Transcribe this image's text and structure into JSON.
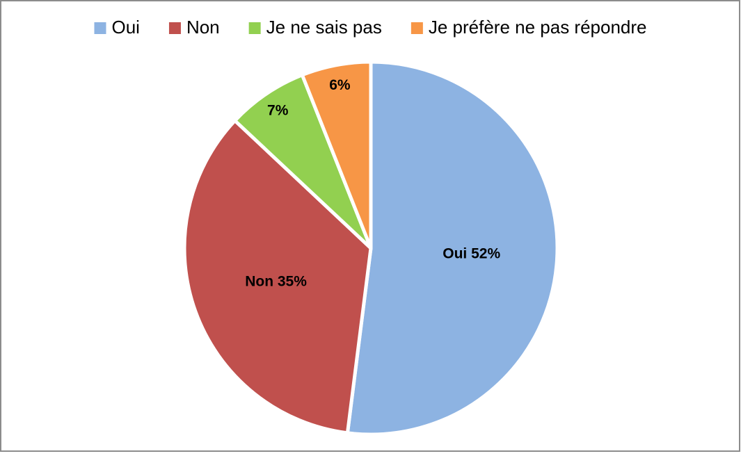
{
  "chart_data": {
    "type": "pie",
    "categories": [
      "Oui",
      "Non",
      "Je ne sais pas",
      "Je préfère ne pas répondre"
    ],
    "values": [
      52,
      35,
      7,
      6
    ],
    "value_labels": [
      "Oui 52%",
      "Non 35%",
      "7%",
      "6%"
    ],
    "colors": [
      "#8db3e2",
      "#c0504d",
      "#92d050",
      "#f79646"
    ],
    "legend": "top"
  }
}
